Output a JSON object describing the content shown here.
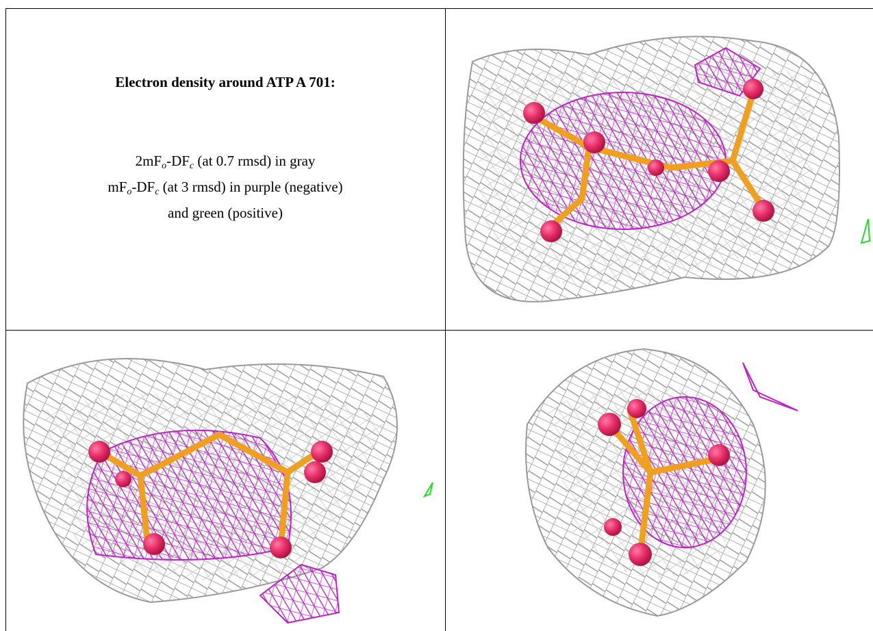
{
  "caption": {
    "title": "Electron density around ATP A 701:",
    "lines": [
      [
        {
          "text": "2mF"
        },
        {
          "sub": "o"
        },
        {
          "text": "-DF"
        },
        {
          "sub": "c"
        },
        {
          "text": " (at 0.7 rmsd) in gray"
        }
      ],
      [
        {
          "text": "mF"
        },
        {
          "sub": "o"
        },
        {
          "text": "-DF"
        },
        {
          "sub": "c"
        },
        {
          "text": " (at 3 rmsd) in purple (negative)"
        }
      ],
      [
        {
          "text": "and green (positive)"
        }
      ]
    ]
  }
}
